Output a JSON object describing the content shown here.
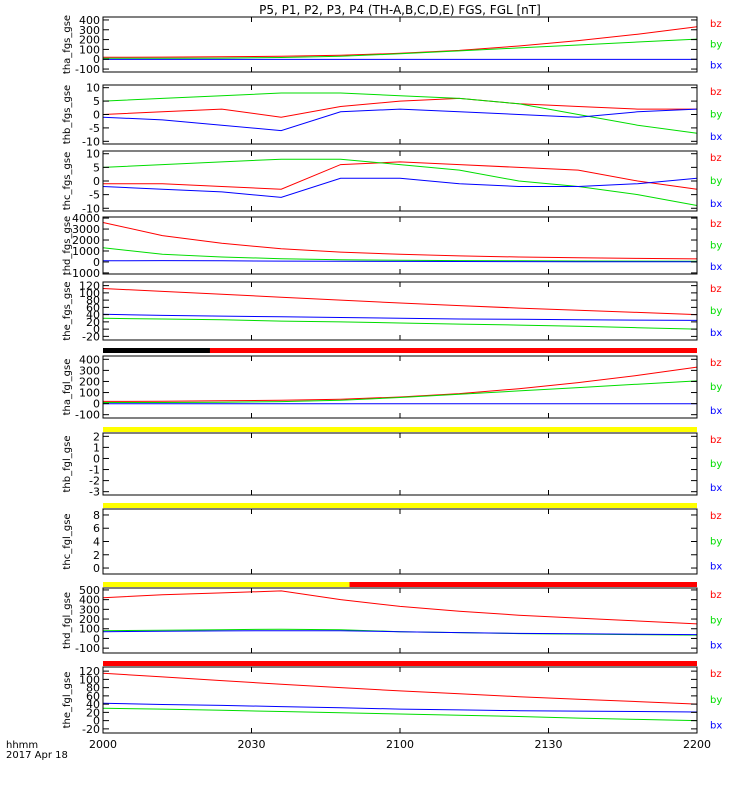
{
  "title": "P5, P1, P2, P3, P4 (TH-A,B,C,D,E) FGS, FGL [nT]",
  "footer": {
    "line1": "hhmm",
    "line2": "2017 Apr 18"
  },
  "colors": {
    "bx": "#0000ff",
    "by": "#00dd00",
    "bz": "#ff0000",
    "red_bar": "#ff0000",
    "yellow_bar": "#ffff00",
    "black_bar": "#000000"
  },
  "chart_data": {
    "type": "line",
    "xlim": [
      0,
      200
    ],
    "xticks": [
      0,
      50,
      100,
      150,
      200
    ],
    "xtick_labels": [
      "2000",
      "2030",
      "2100",
      "2130",
      "2200"
    ],
    "legend": [
      "bz",
      "by",
      "bx"
    ],
    "panels": [
      {
        "ylabel": "tha_fgs_gse",
        "ylim": [
          -130,
          430
        ],
        "yticks": [
          -100,
          0,
          100,
          200,
          300,
          400
        ],
        "ytick_labels": [
          "-100",
          "0",
          "100",
          "200",
          "300",
          "400"
        ],
        "x": [
          0,
          20,
          40,
          60,
          80,
          100,
          120,
          140,
          160,
          180,
          200
        ],
        "series": [
          {
            "name": "bz",
            "values": [
              20,
              22,
              25,
              30,
              40,
              60,
              90,
              135,
              190,
              255,
              330
            ]
          },
          {
            "name": "by",
            "values": [
              10,
              10,
              12,
              18,
              30,
              55,
              85,
              115,
              145,
              175,
              205
            ]
          },
          {
            "name": "bx",
            "values": [
              -2,
              -2,
              -2,
              -2,
              -2,
              -2,
              -2,
              -2,
              -2,
              -2,
              -2
            ]
          }
        ]
      },
      {
        "ylabel": "thb_fgs_gse",
        "ylim": [
          -11,
          11
        ],
        "yticks": [
          -10,
          -5,
          0,
          5,
          10
        ],
        "ytick_labels": [
          "-10",
          "-5",
          "0",
          "5",
          "10"
        ],
        "x": [
          0,
          20,
          40,
          60,
          80,
          100,
          120,
          140,
          160,
          180,
          200
        ],
        "series": [
          {
            "name": "bz",
            "values": [
              0,
              1,
              2,
              -1,
              3,
              5,
              6,
              4,
              3,
              2,
              2
            ]
          },
          {
            "name": "by",
            "values": [
              5,
              6,
              7,
              8,
              8,
              7,
              6,
              4,
              0,
              -4,
              -7
            ]
          },
          {
            "name": "bx",
            "values": [
              -1,
              -2,
              -4,
              -6,
              1,
              2,
              1,
              0,
              -1,
              1,
              2
            ]
          }
        ]
      },
      {
        "ylabel": "thc_fgs_gse",
        "ylim": [
          -11,
          11
        ],
        "yticks": [
          -10,
          -5,
          0,
          5,
          10
        ],
        "ytick_labels": [
          "-10",
          "-5",
          "0",
          "5",
          "10"
        ],
        "x": [
          0,
          20,
          40,
          60,
          80,
          100,
          120,
          140,
          160,
          180,
          200
        ],
        "series": [
          {
            "name": "bz",
            "values": [
              -1,
              -1,
              -2,
              -3,
              6,
              7,
              6,
              5,
              4,
              0,
              -3
            ]
          },
          {
            "name": "by",
            "values": [
              5,
              6,
              7,
              8,
              8,
              6,
              4,
              0,
              -2,
              -5,
              -9
            ]
          },
          {
            "name": "bx",
            "values": [
              -2,
              -3,
              -4,
              -6,
              1,
              1,
              -1,
              -2,
              -2,
              -1,
              1
            ]
          }
        ]
      },
      {
        "ylabel": "thd_fgs_gse",
        "ylim": [
          -1100,
          4100
        ],
        "yticks": [
          -1000,
          0,
          1000,
          2000,
          3000,
          4000
        ],
        "ytick_labels": [
          "-1000",
          "0",
          "1000",
          "2000",
          "3000",
          "4000"
        ],
        "x": [
          0,
          20,
          40,
          60,
          80,
          100,
          120,
          140,
          160,
          180,
          200
        ],
        "series": [
          {
            "name": "bz",
            "values": [
              3600,
              2400,
              1700,
              1200,
              900,
              700,
              550,
              450,
              380,
              320,
              280
            ]
          },
          {
            "name": "by",
            "values": [
              1300,
              700,
              450,
              300,
              200,
              150,
              120,
              100,
              90,
              80,
              70
            ]
          },
          {
            "name": "bx",
            "values": [
              100,
              120,
              100,
              80,
              60,
              50,
              40,
              30,
              20,
              20,
              10
            ]
          }
        ]
      },
      {
        "ylabel": "the_fgs_gse",
        "ylim": [
          -30,
          130
        ],
        "yticks": [
          -20,
          0,
          20,
          40,
          60,
          80,
          100,
          120
        ],
        "ytick_labels": [
          "-20",
          "0",
          "20",
          "40",
          "60",
          "80",
          "100",
          "120"
        ],
        "x": [
          0,
          20,
          40,
          60,
          80,
          100,
          120,
          140,
          160,
          180,
          200
        ],
        "series": [
          {
            "name": "bz",
            "values": [
              112,
              104,
              96,
              88,
              80,
              72,
              65,
              58,
              52,
              46,
              40
            ]
          },
          {
            "name": "by",
            "values": [
              30,
              28,
              26,
              22,
              20,
              17,
              14,
              11,
              8,
              4,
              0
            ]
          },
          {
            "name": "bx",
            "values": [
              41,
              38,
              36,
              34,
              32,
              30,
              28,
              27,
              26,
              25,
              24
            ]
          }
        ]
      },
      {
        "ylabel": "tha_fgl_gse",
        "ylim": [
          -130,
          430
        ],
        "yticks": [
          -100,
          0,
          100,
          200,
          300,
          400
        ],
        "ytick_labels": [
          "-100",
          "0",
          "100",
          "200",
          "300",
          "400"
        ],
        "x": [
          0,
          20,
          40,
          60,
          80,
          100,
          120,
          140,
          160,
          180,
          200
        ],
        "series": [
          {
            "name": "bz",
            "values": [
              20,
              22,
              25,
              30,
              40,
              60,
              90,
              135,
              190,
              255,
              330
            ]
          },
          {
            "name": "by",
            "values": [
              10,
              10,
              12,
              18,
              30,
              55,
              85,
              115,
              145,
              175,
              205
            ]
          },
          {
            "name": "bx",
            "values": [
              -2,
              -2,
              -2,
              -2,
              -2,
              -2,
              -2,
              -2,
              -2,
              -2,
              -2
            ]
          }
        ]
      },
      {
        "ylabel": "thb_fgl_gse",
        "ylim": [
          -3.3,
          2.3
        ],
        "yticks": [
          -3,
          -2,
          -1,
          0,
          1,
          2
        ],
        "ytick_labels": [
          "-3",
          "-2",
          "-1",
          "0",
          "1",
          "2"
        ],
        "x": [],
        "series": []
      },
      {
        "ylabel": "thc_fgl_gse",
        "ylim": [
          -0.9,
          8.9
        ],
        "yticks": [
          0,
          2,
          4,
          6,
          8
        ],
        "ytick_labels": [
          "0",
          "2",
          "4",
          "6",
          "8"
        ],
        "x": [],
        "series": []
      },
      {
        "ylabel": "thd_fgl_gse",
        "ylim": [
          -150,
          520
        ],
        "yticks": [
          -100,
          0,
          100,
          200,
          300,
          400,
          500
        ],
        "ytick_labels": [
          "-100",
          "0",
          "100",
          "200",
          "300",
          "400",
          "500"
        ],
        "x": [
          0,
          20,
          40,
          60,
          80,
          100,
          120,
          140,
          160,
          180,
          200
        ],
        "series": [
          {
            "name": "bz",
            "values": [
              420,
              450,
              470,
              490,
              400,
              330,
              280,
              240,
              210,
              180,
              150
            ]
          },
          {
            "name": "by",
            "values": [
              80,
              85,
              90,
              95,
              90,
              70,
              60,
              50,
              45,
              40,
              35
            ]
          },
          {
            "name": "bx",
            "values": [
              70,
              75,
              78,
              80,
              80,
              70,
              60,
              52,
              48,
              44,
              40
            ]
          }
        ]
      },
      {
        "ylabel": "the_fgl_gse",
        "ylim": [
          -30,
          130
        ],
        "yticks": [
          -20,
          0,
          20,
          40,
          60,
          80,
          100,
          120
        ],
        "ytick_labels": [
          "-20",
          "0",
          "20",
          "40",
          "60",
          "80",
          "100",
          "120"
        ],
        "x": [
          0,
          20,
          40,
          60,
          80,
          100,
          120,
          140,
          160,
          180,
          200
        ],
        "series": [
          {
            "name": "bz",
            "values": [
              115,
              106,
              97,
              88,
              80,
              72,
              65,
              58,
              52,
              46,
              40
            ]
          },
          {
            "name": "by",
            "values": [
              30,
              28,
              25,
              22,
              19,
              16,
              13,
              10,
              6,
              3,
              0
            ]
          },
          {
            "name": "bx",
            "values": [
              42,
              39,
              37,
              34,
              31,
              28,
              26,
              24,
              23,
              22,
              21
            ]
          }
        ]
      }
    ],
    "bars": [
      {
        "after_panel": 4,
        "segments": [
          {
            "from": 0,
            "to": 200,
            "color": "red_bar"
          },
          {
            "from": 0,
            "to": 36,
            "color": "black_bar"
          }
        ]
      },
      {
        "after_panel": 5,
        "segments": [
          {
            "from": 0,
            "to": 200,
            "color": "yellow_bar"
          }
        ]
      },
      {
        "after_panel": 6,
        "segments": [
          {
            "from": 0,
            "to": 200,
            "color": "yellow_bar"
          }
        ]
      },
      {
        "after_panel": 7,
        "segments": [
          {
            "from": 0,
            "to": 83,
            "color": "yellow_bar"
          },
          {
            "from": 83,
            "to": 200,
            "color": "red_bar"
          }
        ]
      },
      {
        "after_panel": 8,
        "segments": [
          {
            "from": 0,
            "to": 200,
            "color": "red_bar"
          }
        ]
      }
    ]
  }
}
